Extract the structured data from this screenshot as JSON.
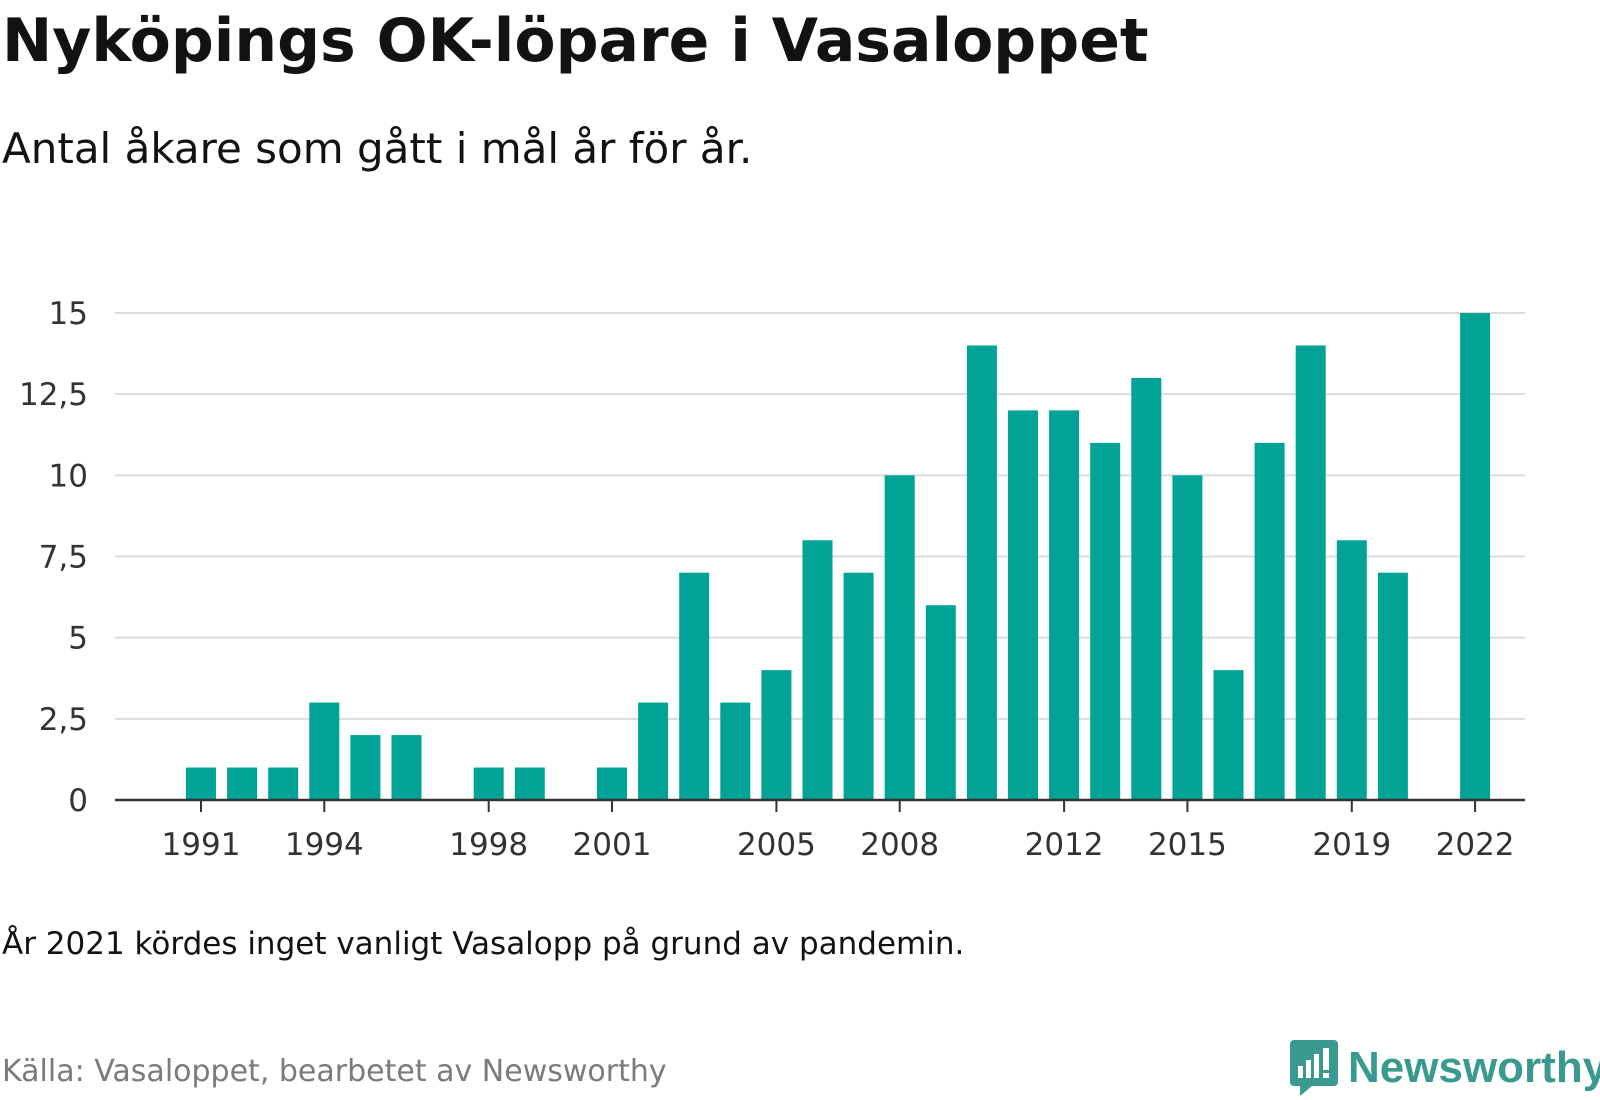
{
  "title": "Nyköpings OK-löpare i Vasaloppet",
  "subtitle": "Antal åkare som gått i mål år för år.",
  "note": "År 2021 kördes inget vanligt Vasalopp på grund av pandemin.",
  "source": "Källa: Vasaloppet, bearbetet av Newsworthy",
  "brand": {
    "name": "Newsworthy",
    "color": "#3a9a8f"
  },
  "chart_data": {
    "type": "bar",
    "bar_color": "#00a396",
    "categories": [
      "1991",
      "1992",
      "1993",
      "1994",
      "1995",
      "1996",
      "1997",
      "1998",
      "1999",
      "2000",
      "2001",
      "2002",
      "2003",
      "2004",
      "2005",
      "2006",
      "2007",
      "2008",
      "2009",
      "2010",
      "2011",
      "2012",
      "2013",
      "2014",
      "2015",
      "2016",
      "2017",
      "2018",
      "2019",
      "2020",
      "2021",
      "2022"
    ],
    "values": [
      1,
      1,
      1,
      3,
      2,
      2,
      0,
      1,
      1,
      0,
      1,
      3,
      7,
      3,
      4,
      8,
      7,
      10,
      6,
      14,
      12,
      12,
      11,
      13,
      10,
      4,
      11,
      14,
      8,
      7,
      0,
      15
    ],
    "x_tick_labels": [
      "1991",
      "1994",
      "1998",
      "2001",
      "2005",
      "2008",
      "2012",
      "2015",
      "2019",
      "2022"
    ],
    "y_ticks": [
      0,
      2.5,
      5,
      7.5,
      10,
      12.5,
      15
    ],
    "y_tick_labels": [
      "0",
      "2,5",
      "5",
      "7,5",
      "10",
      "12,5",
      "15"
    ],
    "ylim": [
      0,
      15
    ],
    "xlabel": "",
    "ylabel": "",
    "grid": true
  }
}
